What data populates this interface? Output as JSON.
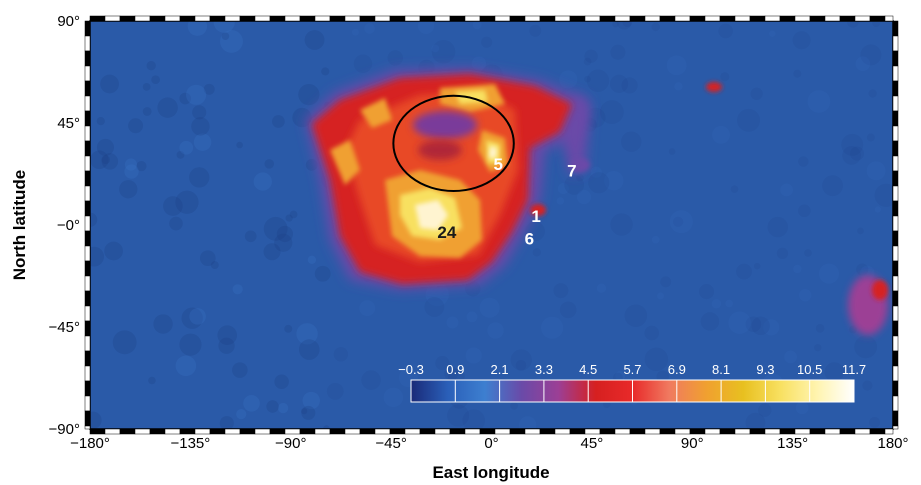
{
  "chart_data": {
    "type": "heatmap",
    "title": "",
    "xlabel": "East longitude",
    "ylabel": "North latitude",
    "xlim": [
      -180,
      180
    ],
    "ylim": [
      -90,
      90
    ],
    "x_ticks": [
      -180,
      -135,
      -90,
      -45,
      0,
      45,
      90,
      135,
      180
    ],
    "x_tick_labels": [
      "−180°",
      "−135°",
      "−90°",
      "−45°",
      "0°",
      "45°",
      "90°",
      "135°",
      "180°"
    ],
    "y_ticks": [
      90,
      45,
      0,
      -45,
      -90
    ],
    "y_tick_labels": [
      "90°",
      "45°",
      "−0°",
      "−45°",
      "−90°"
    ],
    "background_color": "#2a5aa8",
    "colorbar": {
      "ticks": [
        "−0.3",
        "0.9",
        "2.1",
        "3.3",
        "4.5",
        "5.7",
        "6.9",
        "8.1",
        "9.3",
        "10.5",
        "11.7"
      ],
      "range": [
        -0.3,
        11.7
      ],
      "colors": [
        "#1a2a78",
        "#2a5fb8",
        "#3d7fd0",
        "#6a4aa8",
        "#9c3f95",
        "#d62020",
        "#e82a2a",
        "#f07a60",
        "#f0a030",
        "#e8c020",
        "#f8e060",
        "#fff4b0",
        "#ffffff"
      ]
    },
    "sites": [
      {
        "label": "1",
        "lon": 20,
        "lat": 4
      },
      {
        "label": "5",
        "lon": 3,
        "lat": 27
      },
      {
        "label": "6",
        "lon": 17,
        "lat": -6
      },
      {
        "label": "7",
        "lon": 36,
        "lat": 24
      },
      {
        "label": "24",
        "lon": -20,
        "lat": -3
      }
    ],
    "ellipse": {
      "center_lon": -17,
      "center_lat": 36,
      "radius_lon": 27,
      "radius_lat": 21
    },
    "hotspots": [
      {
        "lon": -25,
        "lat": 20,
        "value": 8.5
      },
      {
        "lon": -15,
        "lat": 0,
        "value": 10.5
      },
      {
        "lon": -10,
        "lat": -8,
        "value": 9.8
      },
      {
        "lon": -30,
        "lat": 45,
        "value": 7.5
      },
      {
        "lon": -5,
        "lat": 40,
        "value": 8.0
      },
      {
        "lon": 2,
        "lat": 33,
        "value": 9.5
      },
      {
        "lon": 168,
        "lat": -35,
        "value": 4.0
      },
      {
        "lon": 100,
        "lat": 60,
        "value": 5.0
      }
    ]
  }
}
